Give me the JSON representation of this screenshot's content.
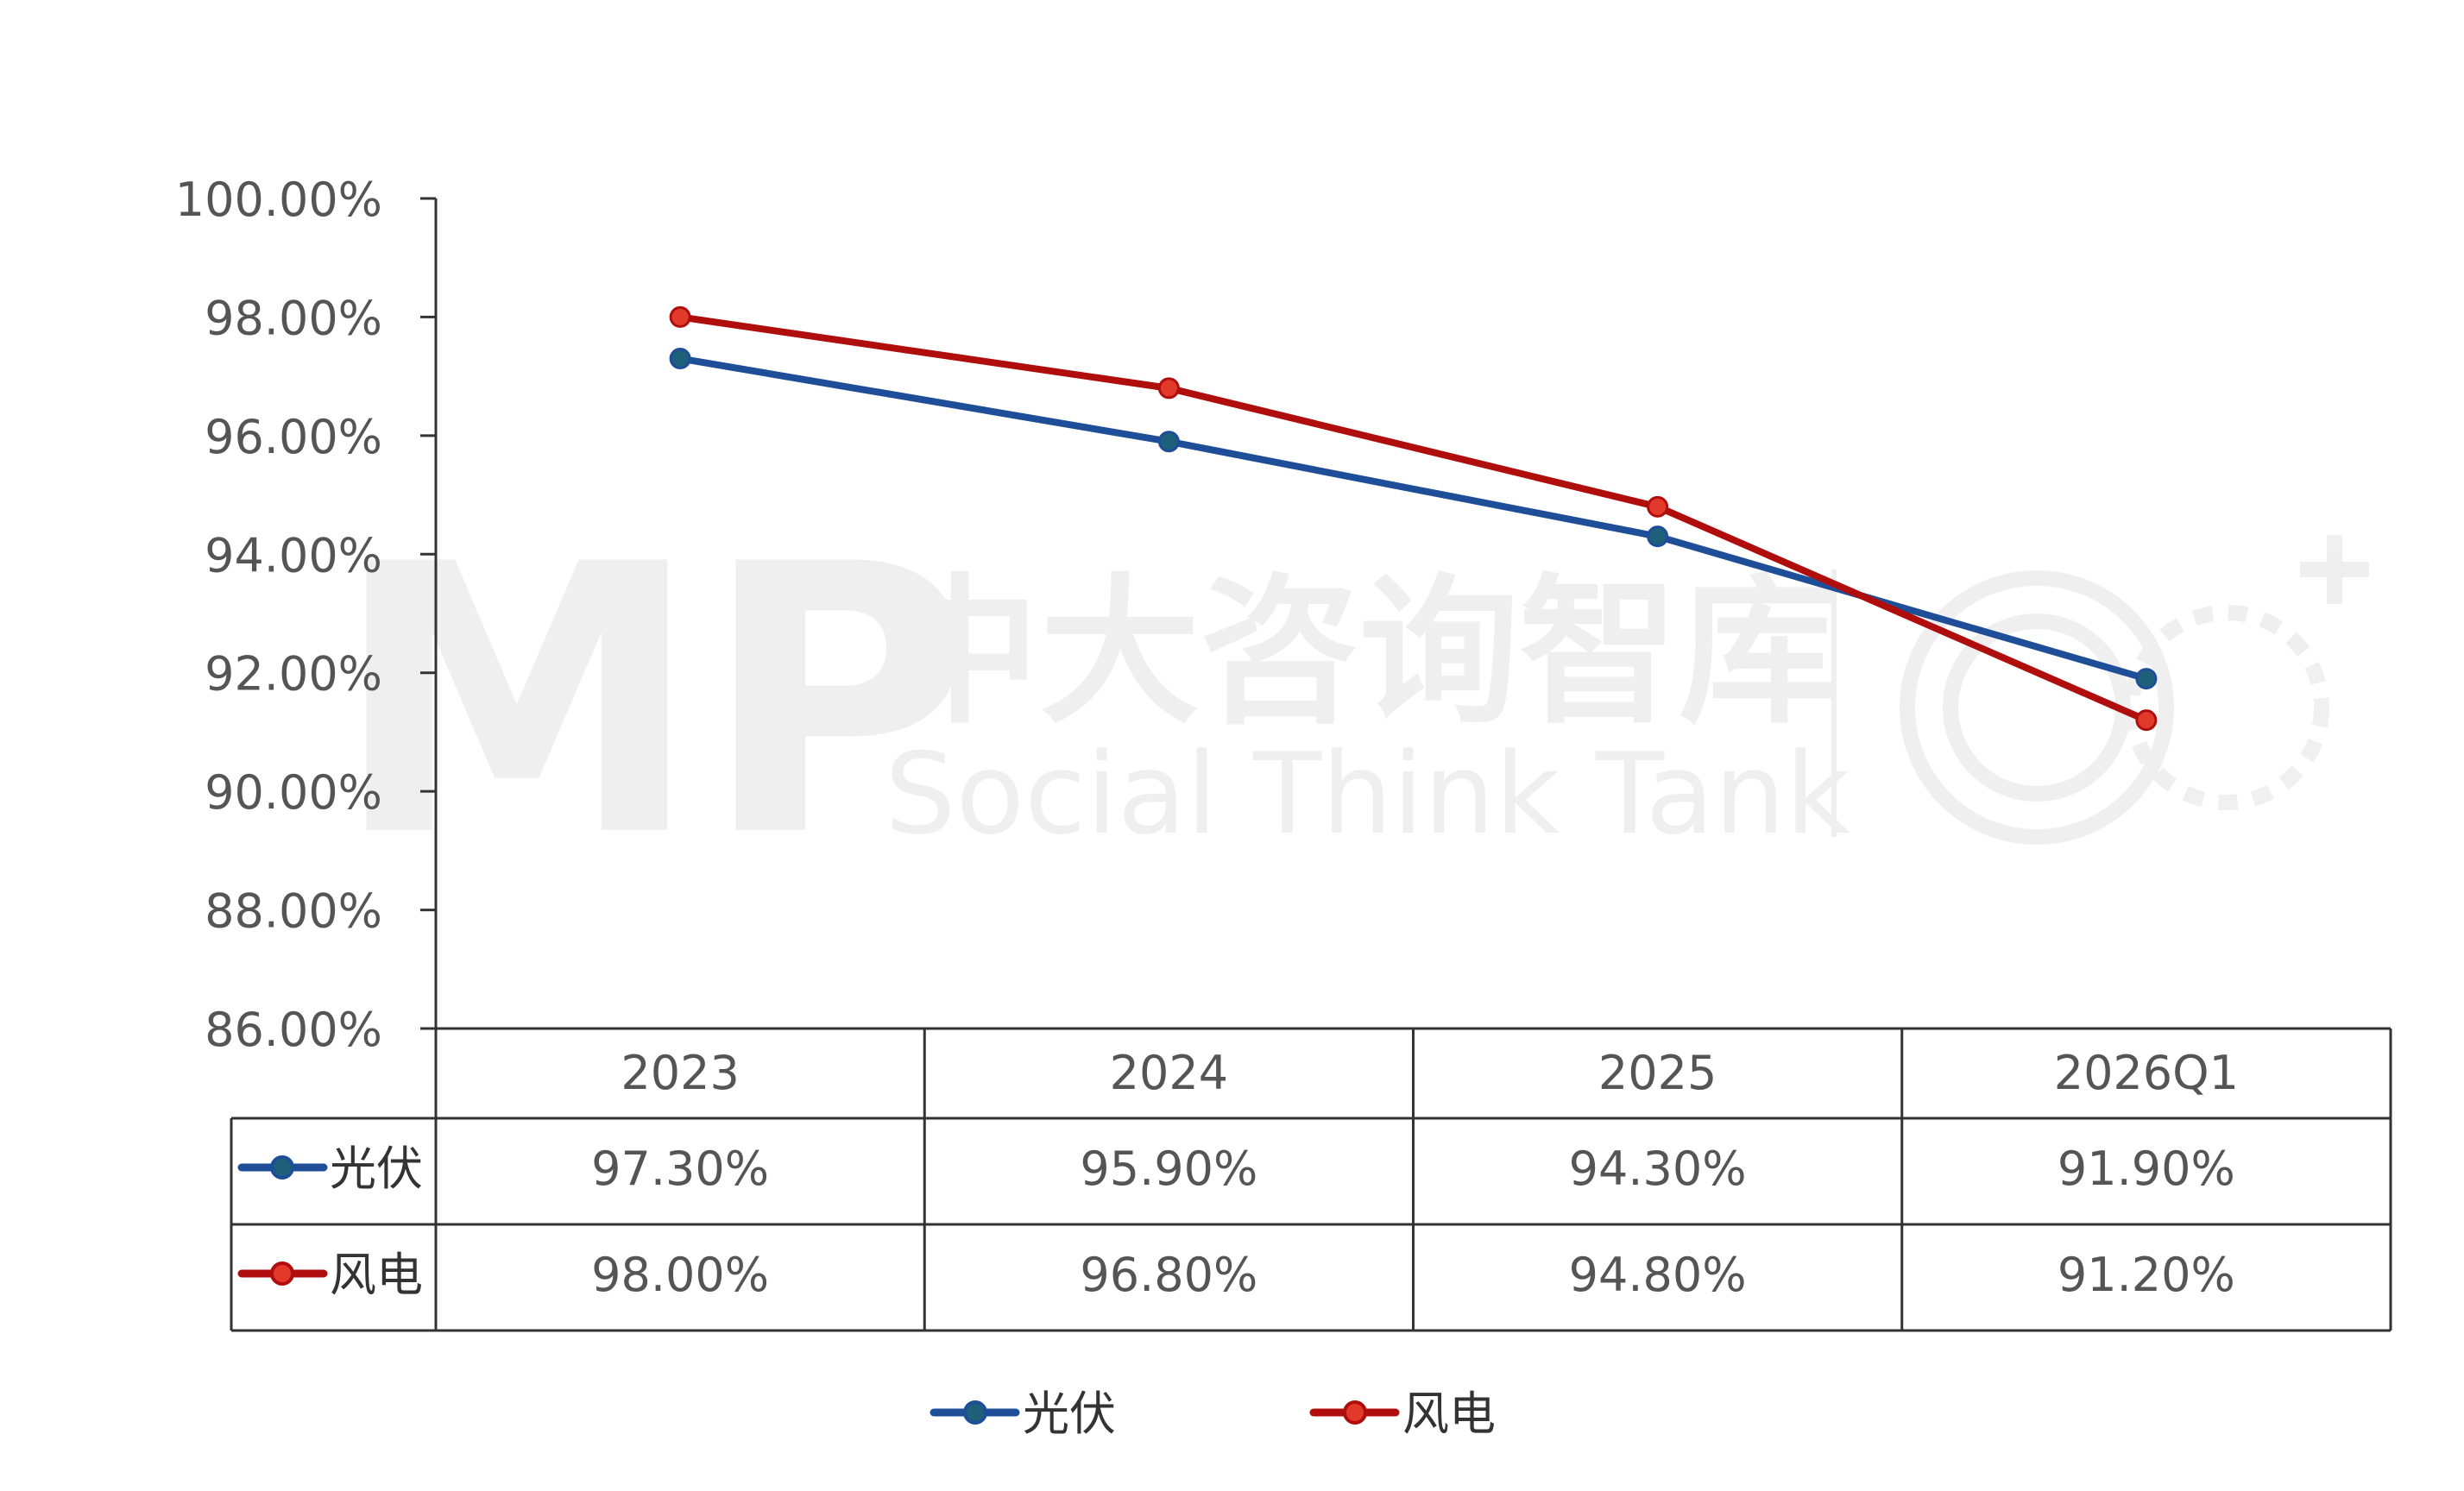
{
  "watermark": {
    "logo_text": "MP",
    "title": "中大咨询智库",
    "subtitle": "Social Think Tank"
  },
  "chart_data": {
    "type": "line",
    "categories": [
      "2023",
      "2024",
      "2025",
      "2026Q1"
    ],
    "series": [
      {
        "name": "光伏",
        "values": [
          97.3,
          95.9,
          94.3,
          91.9
        ],
        "labels": [
          "97.30%",
          "95.90%",
          "94.30%",
          "91.90%"
        ],
        "color": "#1F4E99",
        "marker_color": "#1E5F7A"
      },
      {
        "name": "风电",
        "values": [
          98.0,
          96.8,
          94.8,
          91.2
        ],
        "labels": [
          "98.00%",
          "96.80%",
          "94.80%",
          "91.20%"
        ],
        "color": "#B00D0D",
        "marker_color": "#E23A2A"
      }
    ],
    "y_ticks": [
      "86.00%",
      "88.00%",
      "90.00%",
      "92.00%",
      "94.00%",
      "96.00%",
      "98.00%",
      "100.00%"
    ],
    "ylim": [
      86,
      100
    ],
    "grid": false,
    "legend": "bottom-center",
    "data_table": true
  }
}
